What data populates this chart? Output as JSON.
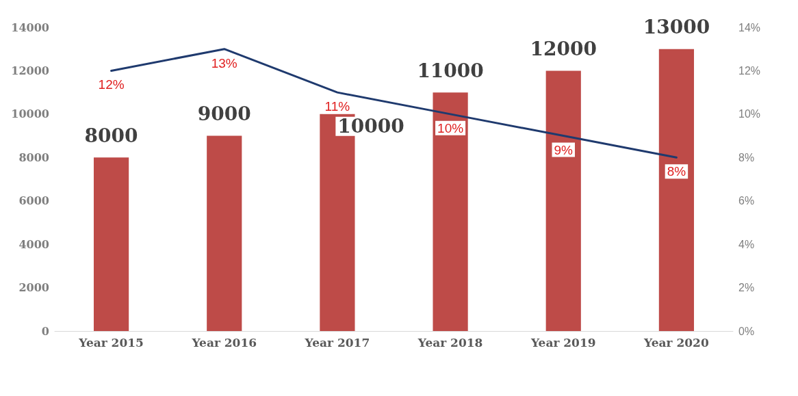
{
  "chart_data": {
    "type": "bar",
    "categories": [
      "Year 2015",
      "Year 2016",
      "Year 2017",
      "Year 2018",
      "Year 2019",
      "Year 2020"
    ],
    "series": [
      {
        "type": "bar",
        "color": "#be4b48",
        "values": [
          8000,
          9000,
          10000,
          11000,
          12000,
          13000
        ],
        "value_labels": [
          "8000",
          "9000",
          "10000",
          "11000",
          "12000",
          "13000"
        ]
      },
      {
        "type": "line",
        "axis": "y2",
        "color": "#1f3a6e",
        "values": [
          12,
          13,
          11,
          10,
          9,
          8
        ],
        "value_labels": [
          "12%",
          "13%",
          "11%",
          "10%",
          "9%",
          "8%"
        ]
      }
    ],
    "ylim": [
      0,
      14000
    ],
    "yticks": [
      0,
      2000,
      4000,
      6000,
      8000,
      10000,
      12000,
      14000
    ],
    "y2lim": [
      0,
      14
    ],
    "y2ticks": [
      {
        "value": 0,
        "label": "0%"
      },
      {
        "value": 2,
        "label": "2%"
      },
      {
        "value": 4,
        "label": "4%"
      },
      {
        "value": 6,
        "label": "6%"
      },
      {
        "value": 8,
        "label": "8%"
      },
      {
        "value": 10,
        "label": "10%"
      },
      {
        "value": 12,
        "label": "12%"
      },
      {
        "value": 14,
        "label": "14%"
      }
    ],
    "marker": "none",
    "line_style": "solid",
    "grid": false
  }
}
